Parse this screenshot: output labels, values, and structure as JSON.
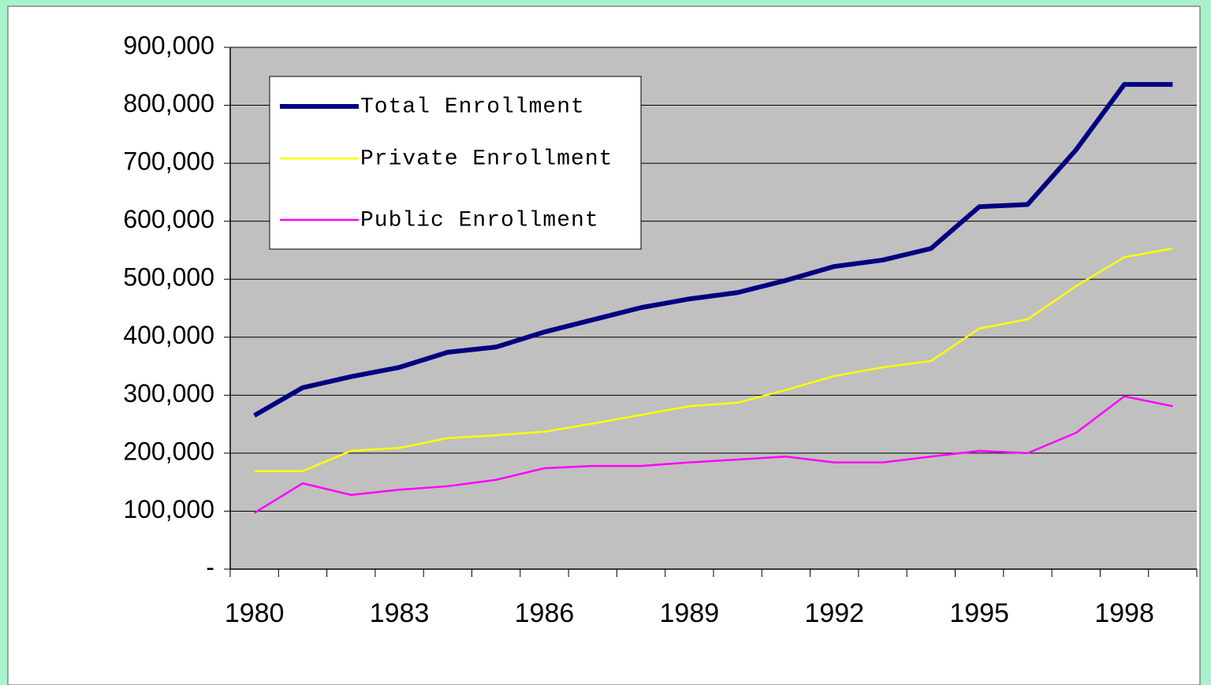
{
  "chart_data": {
    "type": "line",
    "categories": [
      "1980",
      null,
      null,
      "1983",
      null,
      null,
      "1986",
      null,
      null,
      "1989",
      null,
      null,
      "1992",
      null,
      null,
      "1995",
      null,
      null,
      "1998",
      null
    ],
    "series": [
      {
        "name": "Total Enrollment",
        "color": "#000080",
        "values": [
          265000,
          313000,
          332000,
          348000,
          374000,
          383000,
          409000,
          430000,
          451000,
          466000,
          477000,
          498000,
          522000,
          533000,
          553000,
          625000,
          629000,
          723000,
          836000,
          836000
        ]
      },
      {
        "name": "Private Enrollment",
        "color": "#ffff00",
        "values": [
          169000,
          169000,
          204000,
          209000,
          226000,
          231000,
          237000,
          251000,
          266000,
          281000,
          287000,
          309000,
          333000,
          348000,
          359000,
          415000,
          431000,
          488000,
          538000,
          553000
        ]
      },
      {
        "name": "Public Enrollment",
        "color": "#ff00ff",
        "values": [
          97000,
          148000,
          128000,
          137000,
          143000,
          154000,
          174000,
          178000,
          178000,
          184000,
          189000,
          194000,
          184000,
          184000,
          194000,
          204000,
          200000,
          235000,
          298000,
          281000
        ]
      }
    ],
    "ylim": [
      0,
      900000
    ],
    "yticks": [
      {
        "value": 0,
        "label": "-"
      },
      {
        "value": 100000,
        "label": "100,000"
      },
      {
        "value": 200000,
        "label": "200,000"
      },
      {
        "value": 300000,
        "label": "300,000"
      },
      {
        "value": 400000,
        "label": "400,000"
      },
      {
        "value": 500000,
        "label": "500,000"
      },
      {
        "value": 600000,
        "label": "600,000"
      },
      {
        "value": 700000,
        "label": "700,000"
      },
      {
        "value": 800000,
        "label": "800,000"
      },
      {
        "value": 900000,
        "label": "900,000"
      }
    ],
    "grid": true,
    "legend": "upper-left"
  }
}
